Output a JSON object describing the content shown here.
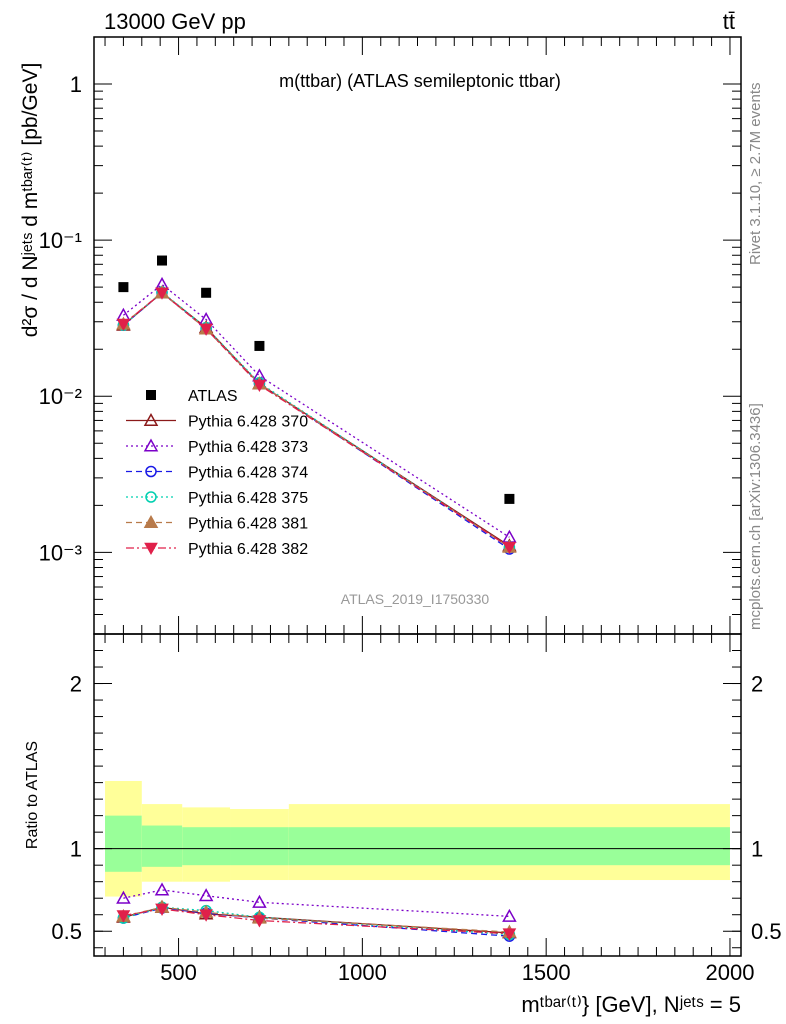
{
  "header": {
    "energy_label": "13000 GeV pp",
    "process_label": "tt̄"
  },
  "side_labels": {
    "rivet": "Rivet 3.1.10, ≥ 2.7M events",
    "mcplots": "mcplots.cern.ch [arXiv:1306.3436]"
  },
  "chart_data": [
    {
      "type": "line",
      "panel": "main",
      "title": "m(ttbar) (ATLAS semileptonic ttbar)",
      "ylabel": "d²σ / d Nʲᵉᵗˢ d mᵗᵇᵃʳ⁽ᵗ⁾ [pb/GeV]",
      "analysis_label": "ATLAS_2019_I1750330",
      "yscale": "log",
      "ylim": [
        0.0003,
        2
      ],
      "xlim": [
        270,
        2030
      ],
      "y_ticks": [
        {
          "value": 1,
          "label": "1"
        },
        {
          "value": 0.1,
          "label": "10⁻¹"
        },
        {
          "value": 0.01,
          "label": "10⁻²"
        },
        {
          "value": 0.001,
          "label": "10⁻³"
        }
      ],
      "legend_position": "left",
      "x": [
        350,
        455,
        575,
        720,
        1400
      ],
      "data": {
        "name": "ATLAS",
        "color": "#000000",
        "marker": "square",
        "values": [
          0.05,
          0.074,
          0.046,
          0.021,
          0.0022
        ]
      },
      "series": [
        {
          "name": "Pythia 6.428 370",
          "color": "#8b1a1a",
          "dash": "",
          "marker": "triangle-open",
          "values": [
            0.0285,
            0.046,
            0.0275,
            0.012,
            0.0011
          ]
        },
        {
          "name": "Pythia 6.428 373",
          "color": "#7b00c8",
          "dash": "2,3",
          "marker": "triangle-open",
          "values": [
            0.033,
            0.052,
            0.031,
            0.0135,
            0.00125
          ]
        },
        {
          "name": "Pythia 6.428 374",
          "color": "#1a1ae6",
          "dash": "6,4",
          "marker": "circle-open",
          "values": [
            0.0285,
            0.046,
            0.027,
            0.012,
            0.00105
          ]
        },
        {
          "name": "Pythia 6.428 375",
          "color": "#00d0b0",
          "dash": "2,3",
          "marker": "circle-open",
          "values": [
            0.0285,
            0.0465,
            0.0275,
            0.0122,
            0.00108
          ]
        },
        {
          "name": "Pythia 6.428 381",
          "color": "#b87a4a",
          "dash": "6,4",
          "marker": "triangle-filled",
          "values": [
            0.029,
            0.046,
            0.027,
            0.012,
            0.00108
          ]
        },
        {
          "name": "Pythia 6.428 382",
          "color": "#e0204a",
          "dash": "8,3,2,3",
          "marker": "triangle-down-filled",
          "values": [
            0.029,
            0.046,
            0.027,
            0.0118,
            0.00108
          ]
        }
      ]
    },
    {
      "type": "line",
      "panel": "ratio",
      "ylabel": "Ratio to ATLAS",
      "xlabel": "mᵗᵇᵃʳ⁽ᵗ⁾} [GeV], Nʲᵉᵗˢ = 5",
      "ylim": [
        0.35,
        2.3
      ],
      "xlim": [
        270,
        2030
      ],
      "x_ticks": [
        500,
        1000,
        1500,
        2000
      ],
      "y_ticks": [
        0.5,
        1,
        2
      ],
      "bin_edges": [
        300,
        400,
        510,
        640,
        800,
        2000
      ],
      "band_outer": [
        [
          0.71,
          1.41
        ],
        [
          0.8,
          1.27
        ],
        [
          0.8,
          1.25
        ],
        [
          0.81,
          1.24
        ],
        [
          0.81,
          1.27
        ]
      ],
      "band_inner": [
        [
          0.86,
          1.2
        ],
        [
          0.89,
          1.14
        ],
        [
          0.9,
          1.13
        ],
        [
          0.9,
          1.13
        ],
        [
          0.9,
          1.13
        ]
      ],
      "band_outer_color": "#ffff99",
      "band_inner_color": "#99ff99",
      "x": [
        350,
        455,
        575,
        720,
        1400
      ],
      "series": [
        {
          "name": "Pythia 6.428 370",
          "values": [
            0.585,
            0.645,
            0.605,
            0.585,
            0.49
          ]
        },
        {
          "name": "Pythia 6.428 373",
          "values": [
            0.7,
            0.75,
            0.715,
            0.675,
            0.59
          ]
        },
        {
          "name": "Pythia 6.428 374",
          "values": [
            0.58,
            0.64,
            0.61,
            0.58,
            0.47
          ]
        },
        {
          "name": "Pythia 6.428 375",
          "values": [
            0.58,
            0.645,
            0.625,
            0.585,
            0.48
          ]
        },
        {
          "name": "Pythia 6.428 381",
          "values": [
            0.59,
            0.645,
            0.615,
            0.58,
            0.495
          ]
        },
        {
          "name": "Pythia 6.428 382",
          "values": [
            0.595,
            0.635,
            0.6,
            0.565,
            0.485
          ]
        }
      ]
    }
  ]
}
